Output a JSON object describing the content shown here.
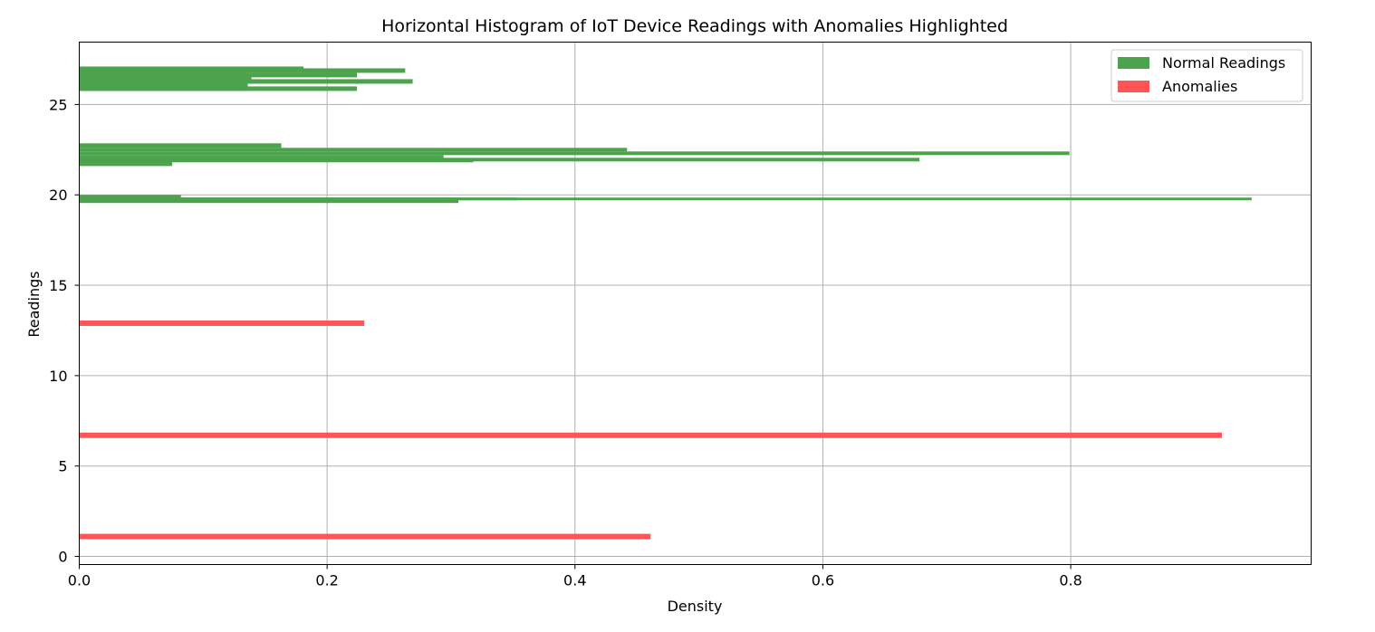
{
  "chart_data": {
    "type": "bar",
    "orientation": "horizontal",
    "title": "Horizontal Histogram of IoT Device Readings with Anomalies Highlighted",
    "xlabel": "Density",
    "ylabel": "Readings",
    "xlim": [
      0,
      0.994
    ],
    "ylim": [
      -0.45,
      28.45
    ],
    "xticks": [
      "0.0",
      "0.2",
      "0.4",
      "0.6",
      "0.8"
    ],
    "xtick_values": [
      0,
      0.2,
      0.4,
      0.6,
      0.8
    ],
    "yticks": [
      "0",
      "5",
      "10",
      "15",
      "20",
      "25"
    ],
    "ytick_values": [
      0,
      5,
      10,
      15,
      20,
      25
    ],
    "grid": true,
    "legend_position": "upper right",
    "series": [
      {
        "name": "Normal Readings",
        "color": "#4da34d",
        "bins": [
          {
            "y0": 19.55,
            "y1": 19.85,
            "value": 0.306
          },
          {
            "y0": 19.7,
            "y1": 19.85,
            "value": 0.353
          },
          {
            "y0": 19.7,
            "y1": 19.85,
            "value": 0.946
          },
          {
            "y0": 19.85,
            "y1": 20.0,
            "value": 0.082
          },
          {
            "y0": 21.6,
            "y1": 21.8,
            "value": 0.074
          },
          {
            "y0": 21.6,
            "y1": 21.85,
            "value": 0.075
          },
          {
            "y0": 21.8,
            "y1": 21.95,
            "value": 0.318
          },
          {
            "y0": 21.85,
            "y1": 22.05,
            "value": 0.678
          },
          {
            "y0": 21.95,
            "y1": 22.2,
            "value": 0.294
          },
          {
            "y0": 22.2,
            "y1": 22.4,
            "value": 0.799
          },
          {
            "y0": 22.4,
            "y1": 22.6,
            "value": 0.442
          },
          {
            "y0": 22.6,
            "y1": 22.85,
            "value": 0.163
          },
          {
            "y0": 25.75,
            "y1": 26.0,
            "value": 0.224
          },
          {
            "y0": 25.75,
            "y1": 26.15,
            "value": 0.136
          },
          {
            "y0": 26.15,
            "y1": 26.4,
            "value": 0.269
          },
          {
            "y0": 26.15,
            "y1": 26.3,
            "value": 0.228
          },
          {
            "y0": 26.3,
            "y1": 26.6,
            "value": 0.139
          },
          {
            "y0": 26.5,
            "y1": 26.75,
            "value": 0.224
          },
          {
            "y0": 26.6,
            "y1": 26.8,
            "value": 0.136
          },
          {
            "y0": 26.75,
            "y1": 27.0,
            "value": 0.263
          },
          {
            "y0": 26.9,
            "y1": 27.1,
            "value": 0.181
          }
        ]
      },
      {
        "name": "Anomalies",
        "color": "#ff5555",
        "bins": [
          {
            "y0": 0.95,
            "y1": 1.25,
            "value": 0.461
          },
          {
            "y0": 6.55,
            "y1": 6.85,
            "value": 0.922
          },
          {
            "y0": 12.75,
            "y1": 13.05,
            "value": 0.23
          }
        ]
      }
    ]
  }
}
